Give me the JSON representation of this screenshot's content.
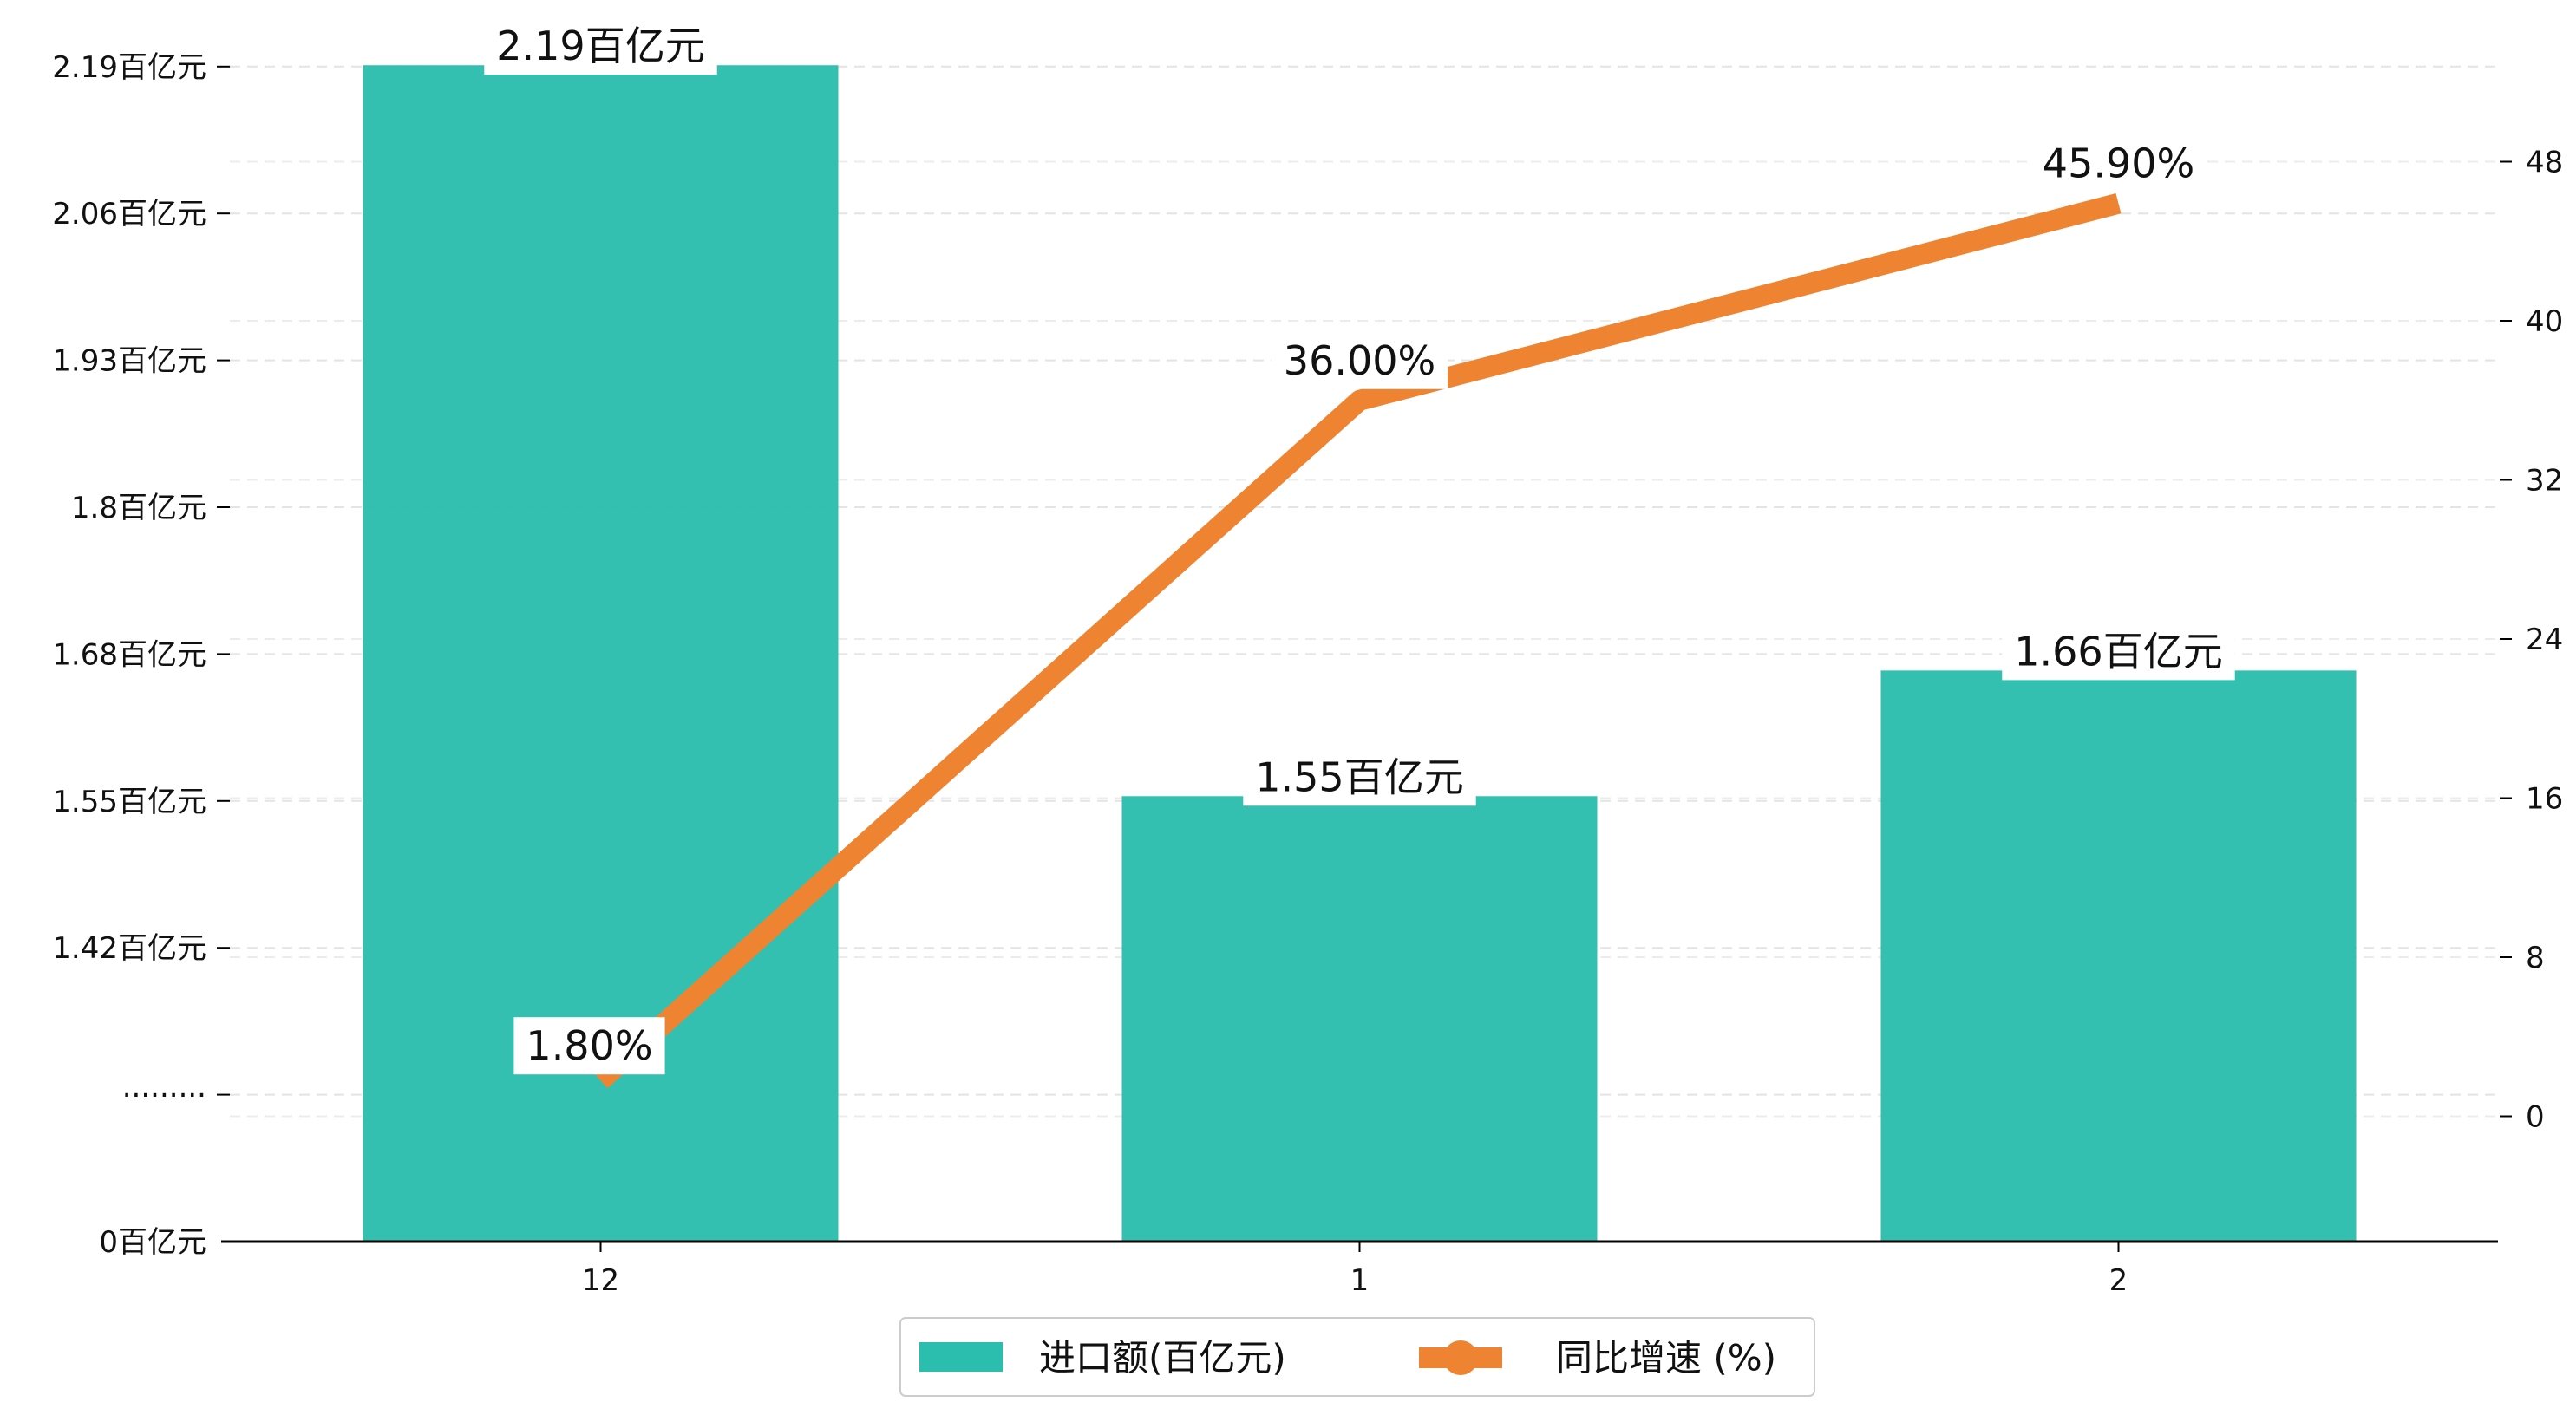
{
  "chart_data": {
    "type": "bar+line",
    "categories": [
      "12",
      "1",
      "2"
    ],
    "series": [
      {
        "name": "进口额(百亿元)",
        "type": "bar",
        "axis": "left",
        "color": "#2bbdad",
        "values": [
          2.19,
          1.55,
          1.66
        ],
        "labels": [
          "2.19百亿元",
          "1.55百亿元",
          "1.66百亿元"
        ]
      },
      {
        "name": "同比增速 (%)",
        "type": "line",
        "axis": "right",
        "color": "#ee8432",
        "values": [
          1.8,
          36.0,
          45.9
        ],
        "labels": [
          "1.80%",
          "36.00%",
          "45.90%"
        ]
      }
    ],
    "left_axis": {
      "break": true,
      "ticks": [
        "0百亿元",
        "·········",
        "1.42百亿元",
        "1.55百亿元",
        "1.68百亿元",
        "1.8百亿元",
        "1.93百亿元",
        "2.06百亿元",
        "2.19百亿元"
      ],
      "scale_min": 1.16,
      "tick_values": [
        1.29,
        1.42,
        1.55,
        1.68,
        1.8,
        1.93,
        2.06,
        2.19
      ]
    },
    "right_axis": {
      "ticks": [
        "0",
        "8",
        "16",
        "24",
        "32",
        "40",
        "48"
      ],
      "tick_values": [
        0,
        8,
        16,
        24,
        32,
        40,
        48
      ],
      "ylim": [
        -6.3,
        54.3
      ]
    },
    "grid": "dashed-horizontal",
    "legend": "bottom-center"
  }
}
